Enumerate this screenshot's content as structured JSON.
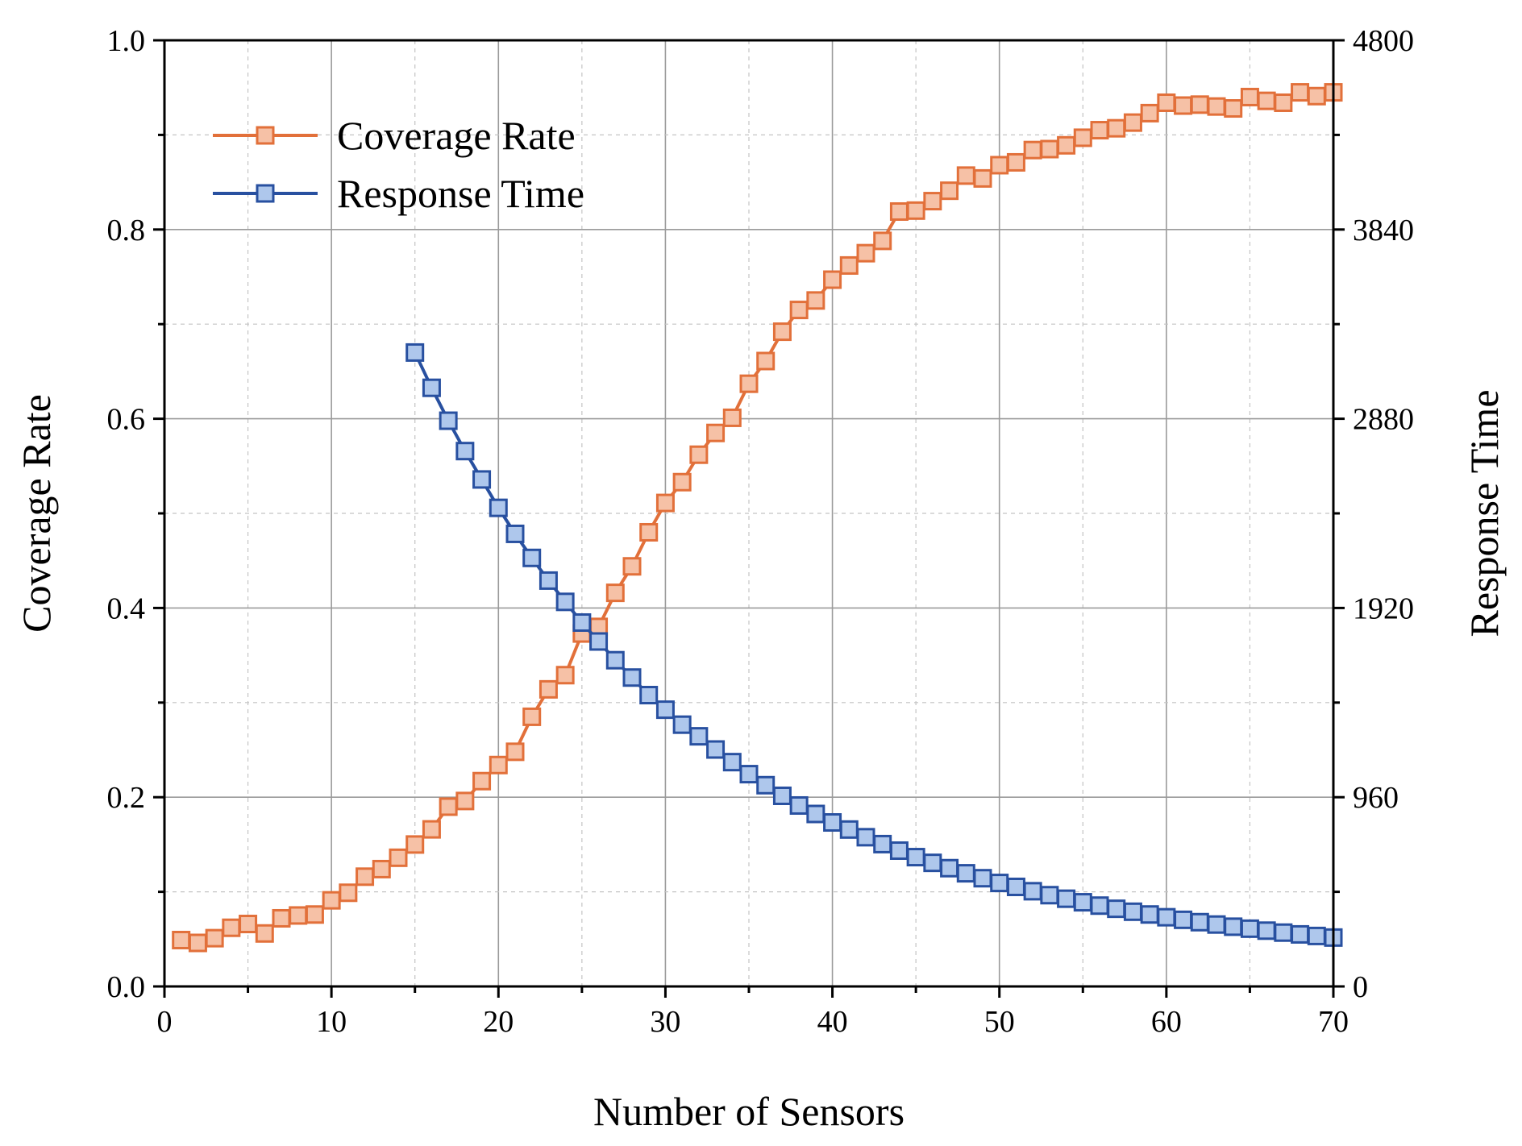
{
  "chart_data": {
    "type": "line",
    "title": "",
    "xlabel": "Number of Sensors",
    "ylabel_left": "Coverage Rate",
    "ylabel_right": "Response Time",
    "xlim": [
      0,
      70
    ],
    "ylim_left": [
      0.0,
      1.0
    ],
    "ylim_right": [
      0,
      4800
    ],
    "x_ticks": [
      "0",
      "10",
      "20",
      "30",
      "40",
      "50",
      "60",
      "70"
    ],
    "y_left_ticks": [
      "0.0",
      "0.2",
      "0.4",
      "0.6",
      "0.8",
      "1.0"
    ],
    "y_right_ticks": [
      "0",
      "960",
      "1920",
      "2880",
      "3840",
      "4800"
    ],
    "grid": true,
    "legend_position": "top-left",
    "series": [
      {
        "name": "Coverage Rate",
        "axis": "left",
        "line_color": "#E2703A",
        "marker_fill": "#F6C1A6",
        "marker": "square",
        "x": [
          1,
          2,
          3,
          4,
          5,
          6,
          7,
          8,
          9,
          10,
          11,
          12,
          13,
          14,
          15,
          16,
          17,
          18,
          19,
          20,
          21,
          22,
          23,
          24,
          25,
          26,
          27,
          28,
          29,
          30,
          31,
          32,
          33,
          34,
          35,
          36,
          37,
          38,
          39,
          40,
          41,
          42,
          43,
          44,
          45,
          46,
          47,
          48,
          49,
          50,
          51,
          52,
          53,
          54,
          55,
          56,
          57,
          58,
          59,
          60,
          61,
          62,
          63,
          64,
          65,
          66,
          67,
          68,
          69,
          70
        ],
        "values": [
          0.049,
          0.046,
          0.051,
          0.062,
          0.066,
          0.056,
          0.072,
          0.075,
          0.076,
          0.091,
          0.099,
          0.116,
          0.124,
          0.136,
          0.15,
          0.166,
          0.19,
          0.196,
          0.217,
          0.234,
          0.248,
          0.285,
          0.314,
          0.329,
          0.373,
          0.38,
          0.416,
          0.444,
          0.48,
          0.511,
          0.533,
          0.562,
          0.585,
          0.601,
          0.637,
          0.661,
          0.692,
          0.715,
          0.725,
          0.747,
          0.762,
          0.775,
          0.788,
          0.819,
          0.82,
          0.83,
          0.841,
          0.857,
          0.854,
          0.868,
          0.871,
          0.884,
          0.885,
          0.889,
          0.897,
          0.905,
          0.907,
          0.913,
          0.923,
          0.934,
          0.931,
          0.932,
          0.93,
          0.928,
          0.94,
          0.936,
          0.934,
          0.945,
          0.941,
          0.945
        ]
      },
      {
        "name": "Response Time",
        "axis": "right",
        "line_color": "#2850A0",
        "marker_fill": "#AEC7EC",
        "marker": "square",
        "x": [
          15,
          16,
          17,
          18,
          19,
          20,
          21,
          22,
          23,
          24,
          25,
          26,
          27,
          28,
          29,
          30,
          31,
          32,
          33,
          34,
          35,
          36,
          37,
          38,
          39,
          40,
          41,
          42,
          43,
          44,
          45,
          46,
          47,
          48,
          49,
          50,
          51,
          52,
          53,
          54,
          55,
          56,
          57,
          58,
          59,
          60,
          61,
          62,
          63,
          64,
          65,
          66,
          67,
          68,
          69,
          70
        ],
        "values": [
          3216,
          3037,
          2870,
          2716,
          2572,
          2428,
          2296,
          2174,
          2059,
          1951,
          1846,
          1750,
          1655,
          1567,
          1478,
          1404,
          1328,
          1269,
          1202,
          1138,
          1077,
          1021,
          967,
          918,
          875,
          832,
          796,
          757,
          722,
          689,
          656,
          627,
          600,
          574,
          549,
          525,
          505,
          483,
          463,
          445,
          427,
          410,
          394,
          379,
          365,
          351,
          338,
          326,
          314,
          303,
          293,
          283,
          273,
          264,
          256,
          248
        ]
      }
    ]
  }
}
